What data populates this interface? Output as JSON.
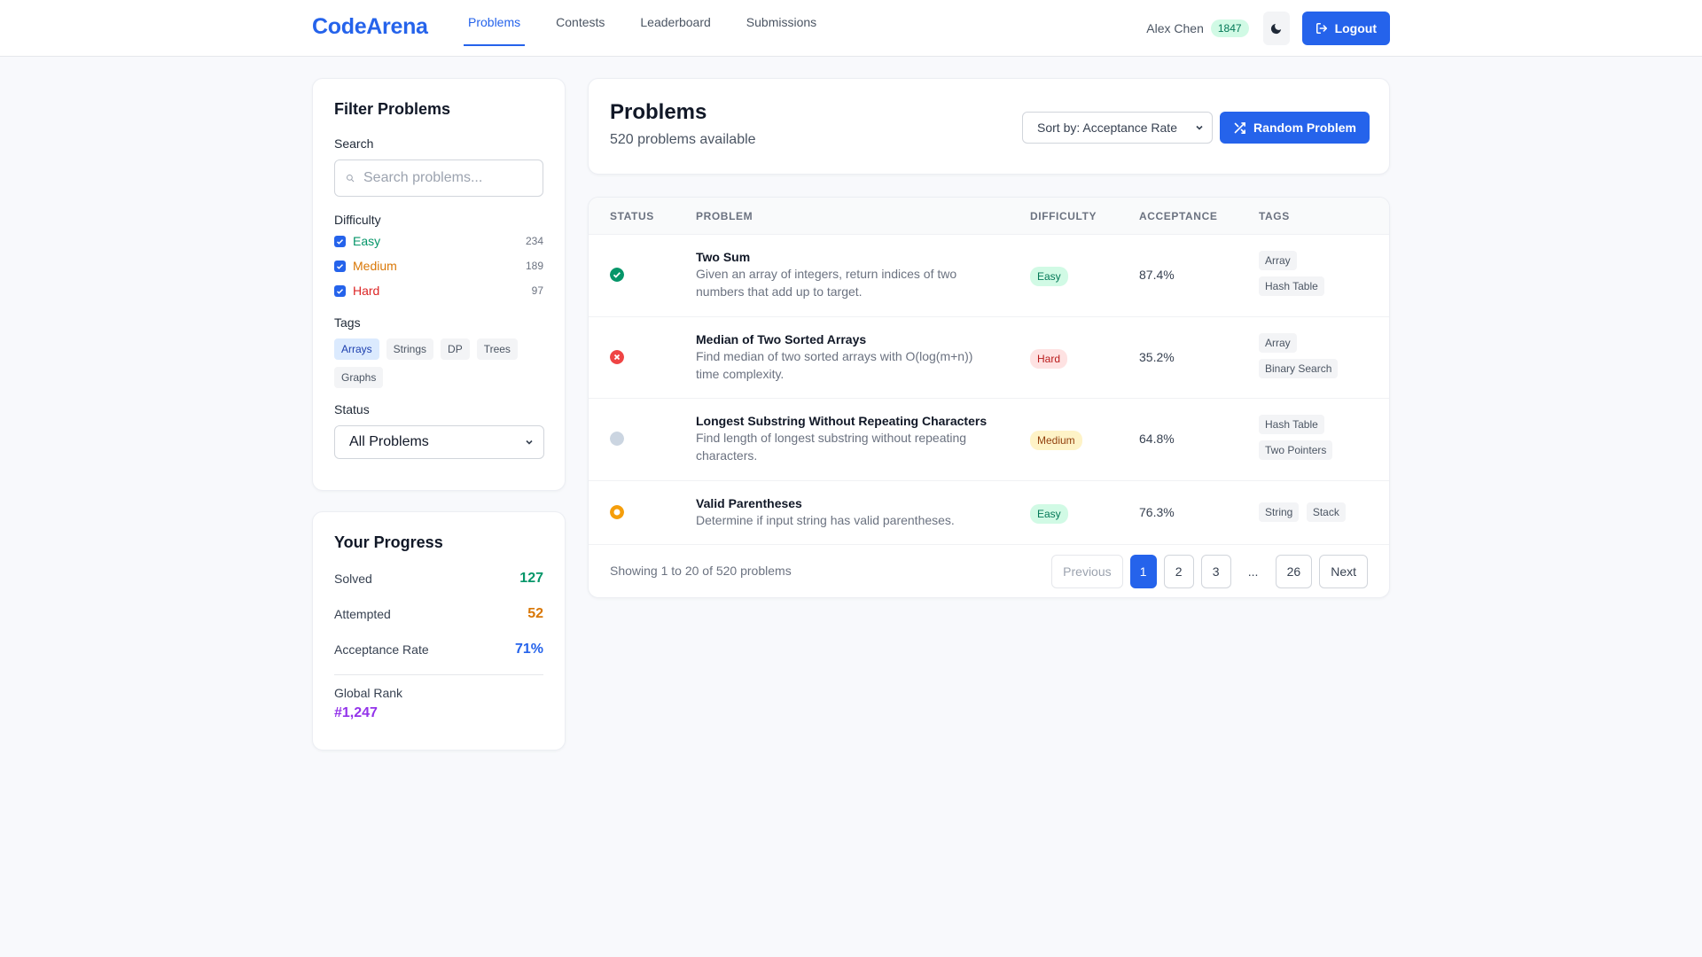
{
  "header": {
    "logo": "CodeArena",
    "nav": [
      "Problems",
      "Contests",
      "Leaderboard",
      "Submissions"
    ],
    "active_nav": "Problems",
    "user_name": "Alex Chen",
    "rating": "1847",
    "theme_icon": "moon-icon",
    "logout_label": "Logout"
  },
  "filter": {
    "title": "Filter Problems",
    "search_label": "Search",
    "search_placeholder": "Search problems...",
    "difficulty_label": "Difficulty",
    "difficulties": [
      {
        "label": "Easy",
        "count": "234",
        "checked": true,
        "color": "#059669"
      },
      {
        "label": "Medium",
        "count": "189",
        "checked": true,
        "color": "#d97706"
      },
      {
        "label": "Hard",
        "count": "97",
        "checked": true,
        "color": "#dc2626"
      }
    ],
    "tags_label": "Tags",
    "tags": [
      "Arrays",
      "Strings",
      "DP",
      "Trees",
      "Graphs"
    ],
    "active_tag": "Arrays",
    "status_label": "Status",
    "status_value": "All Problems"
  },
  "progress": {
    "title": "Your Progress",
    "solved_label": "Solved",
    "solved": "127",
    "attempted_label": "Attempted",
    "attempted": "52",
    "acceptance_label": "Acceptance Rate",
    "acceptance": "71%",
    "rank_label": "Global Rank",
    "rank": "#1,247"
  },
  "problems_header": {
    "title": "Problems",
    "subtitle": "520 problems available",
    "sort_value": "Sort by: Acceptance Rate",
    "random_label": "Random Problem"
  },
  "table": {
    "columns": [
      "STATUS",
      "PROBLEM",
      "DIFFICULTY",
      "ACCEPTANCE",
      "TAGS"
    ],
    "rows": [
      {
        "status": "solved",
        "title": "Two Sum",
        "desc": "Given an array of integers, return indices of two numbers that add up to target.",
        "difficulty": "Easy",
        "acceptance": "87.4%",
        "tags": [
          "Array",
          "Hash Table"
        ]
      },
      {
        "status": "failed",
        "title": "Median of Two Sorted Arrays",
        "desc": "Find median of two sorted arrays with O(log(m+n)) time complexity.",
        "difficulty": "Hard",
        "acceptance": "35.2%",
        "tags": [
          "Array",
          "Binary Search"
        ]
      },
      {
        "status": "unattempted",
        "title": "Longest Substring Without Repeating Characters",
        "desc": "Find length of longest substring without repeating characters.",
        "difficulty": "Medium",
        "acceptance": "64.8%",
        "tags": [
          "Hash Table",
          "Two Pointers"
        ]
      },
      {
        "status": "attempted",
        "title": "Valid Parentheses",
        "desc": "Determine if input string has valid parentheses.",
        "difficulty": "Easy",
        "acceptance": "76.3%",
        "tags": [
          "String",
          "Stack"
        ]
      }
    ],
    "footer_text": "Showing 1 to 20 of 520 problems",
    "pagination": [
      "Previous",
      "1",
      "2",
      "3",
      "...",
      "26",
      "Next"
    ],
    "current_page": "1"
  },
  "colors": {
    "accent": "#2563eb",
    "easy": "#059669",
    "medium": "#d97706",
    "hard": "#dc2626",
    "rank": "#9333ea"
  }
}
